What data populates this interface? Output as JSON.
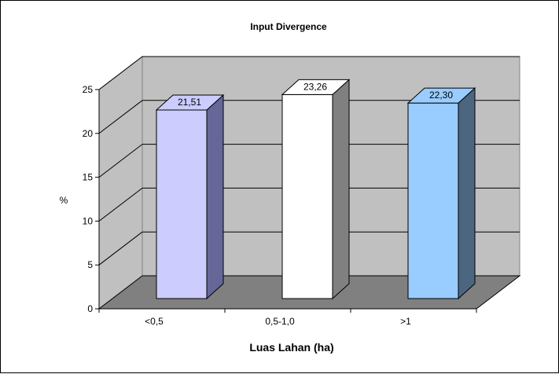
{
  "chart_data": {
    "type": "bar",
    "title": "Input Divergence",
    "xlabel": "Luas Lahan (ha)",
    "ylabel": "%",
    "categories": [
      "<0,5",
      "0,5-1,0",
      ">1"
    ],
    "values": [
      21.51,
      23.26,
      22.3
    ],
    "value_labels": [
      "21,51",
      "23,26",
      "22,30"
    ],
    "bar_colors": [
      "#ccccff",
      "#ffffff",
      "#99ccff"
    ],
    "side_colors": [
      "#666699",
      "#808080",
      "#4d6680"
    ],
    "ylim": [
      0,
      25
    ],
    "yticks": [
      0,
      5,
      10,
      15,
      20,
      25
    ],
    "grid": true,
    "three_d": true,
    "wall_color": "#c0c0c0",
    "floor_color": "#808080"
  }
}
